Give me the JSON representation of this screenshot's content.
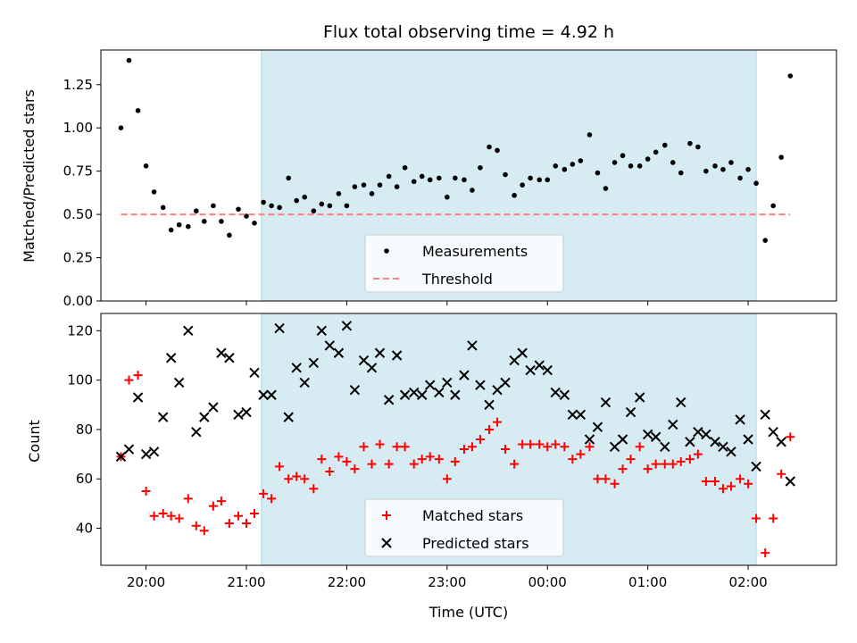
{
  "chart_data": [
    {
      "type": "scatter",
      "title": "Flux total observing time = 4.92 h",
      "xlabel": "",
      "ylabel": "Matched/Predicted stars",
      "ylim": [
        0,
        1.45
      ],
      "yticks": [
        "0.00",
        "0.25",
        "0.50",
        "0.75",
        "1.00",
        "1.25"
      ],
      "ytick_values": [
        0,
        0.25,
        0.5,
        0.75,
        1.0,
        1.25
      ],
      "xlim": [
        19.55,
        26.88
      ],
      "shaded_range": [
        21.15,
        26.08
      ],
      "shaded_color": "#add8e6",
      "legend_position": "bottom-center",
      "series": [
        {
          "name": "Measurements",
          "marker": "dot",
          "color": "#000000",
          "points": [
            [
              19.75,
              1.0
            ],
            [
              19.83,
              1.39
            ],
            [
              19.92,
              1.1
            ],
            [
              20.0,
              0.78
            ],
            [
              20.08,
              0.63
            ],
            [
              20.17,
              0.54
            ],
            [
              20.25,
              0.41
            ],
            [
              20.33,
              0.44
            ],
            [
              20.42,
              0.43
            ],
            [
              20.5,
              0.52
            ],
            [
              20.58,
              0.46
            ],
            [
              20.67,
              0.55
            ],
            [
              20.75,
              0.46
            ],
            [
              20.83,
              0.38
            ],
            [
              20.92,
              0.53
            ],
            [
              21.0,
              0.49
            ],
            [
              21.08,
              0.45
            ],
            [
              21.17,
              0.57
            ],
            [
              21.25,
              0.55
            ],
            [
              21.33,
              0.54
            ],
            [
              21.42,
              0.71
            ],
            [
              21.5,
              0.58
            ],
            [
              21.58,
              0.6
            ],
            [
              21.67,
              0.52
            ],
            [
              21.75,
              0.56
            ],
            [
              21.83,
              0.55
            ],
            [
              21.92,
              0.62
            ],
            [
              22.0,
              0.55
            ],
            [
              22.08,
              0.66
            ],
            [
              22.17,
              0.67
            ],
            [
              22.25,
              0.62
            ],
            [
              22.33,
              0.67
            ],
            [
              22.42,
              0.72
            ],
            [
              22.5,
              0.66
            ],
            [
              22.58,
              0.77
            ],
            [
              22.67,
              0.69
            ],
            [
              22.75,
              0.72
            ],
            [
              22.83,
              0.7
            ],
            [
              22.92,
              0.71
            ],
            [
              23.0,
              0.6
            ],
            [
              23.08,
              0.71
            ],
            [
              23.17,
              0.7
            ],
            [
              23.25,
              0.64
            ],
            [
              23.33,
              0.77
            ],
            [
              23.42,
              0.89
            ],
            [
              23.5,
              0.87
            ],
            [
              23.58,
              0.73
            ],
            [
              23.67,
              0.61
            ],
            [
              23.75,
              0.67
            ],
            [
              23.83,
              0.71
            ],
            [
              23.92,
              0.7
            ],
            [
              24.0,
              0.7
            ],
            [
              24.08,
              0.78
            ],
            [
              24.17,
              0.76
            ],
            [
              24.25,
              0.79
            ],
            [
              24.33,
              0.81
            ],
            [
              24.42,
              0.96
            ],
            [
              24.5,
              0.74
            ],
            [
              24.58,
              0.65
            ],
            [
              24.67,
              0.8
            ],
            [
              24.75,
              0.84
            ],
            [
              24.83,
              0.78
            ],
            [
              24.92,
              0.78
            ],
            [
              25.0,
              0.82
            ],
            [
              25.08,
              0.86
            ],
            [
              25.17,
              0.9
            ],
            [
              25.25,
              0.8
            ],
            [
              25.33,
              0.74
            ],
            [
              25.42,
              0.91
            ],
            [
              25.5,
              0.89
            ],
            [
              25.58,
              0.75
            ],
            [
              25.67,
              0.78
            ],
            [
              25.75,
              0.76
            ],
            [
              25.83,
              0.8
            ],
            [
              25.92,
              0.71
            ],
            [
              26.0,
              0.76
            ],
            [
              26.08,
              0.68
            ],
            [
              26.17,
              0.35
            ],
            [
              26.25,
              0.55
            ],
            [
              26.33,
              0.83
            ],
            [
              26.42,
              1.3
            ]
          ]
        },
        {
          "name": "Threshold",
          "marker": "dashed-line",
          "color": "#ff7f7f",
          "points": [
            [
              19.75,
              0.5
            ],
            [
              26.42,
              0.5
            ]
          ]
        }
      ]
    },
    {
      "type": "scatter",
      "title": "",
      "xlabel": "Time (UTC)",
      "ylabel": "Count",
      "ylim": [
        25,
        127
      ],
      "yticks": [
        "40",
        "60",
        "80",
        "100",
        "120"
      ],
      "ytick_values": [
        40,
        60,
        80,
        100,
        120
      ],
      "xlim": [
        19.55,
        26.88
      ],
      "xticks": [
        "20:00",
        "21:00",
        "22:00",
        "23:00",
        "00:00",
        "01:00",
        "02:00"
      ],
      "xtick_values": [
        20,
        21,
        22,
        23,
        24,
        25,
        26
      ],
      "shaded_range": [
        21.15,
        26.08
      ],
      "shaded_color": "#add8e6",
      "legend_position": "bottom-center",
      "series": [
        {
          "name": "Matched stars",
          "marker": "plus",
          "color": "#ff0000",
          "points": [
            [
              19.75,
              69
            ],
            [
              19.83,
              100
            ],
            [
              19.92,
              102
            ],
            [
              20.0,
              55
            ],
            [
              20.08,
              45
            ],
            [
              20.17,
              46
            ],
            [
              20.25,
              45
            ],
            [
              20.33,
              44
            ],
            [
              20.42,
              52
            ],
            [
              20.5,
              41
            ],
            [
              20.58,
              39
            ],
            [
              20.67,
              49
            ],
            [
              20.75,
              51
            ],
            [
              20.83,
              42
            ],
            [
              20.92,
              45
            ],
            [
              21.0,
              42
            ],
            [
              21.08,
              46
            ],
            [
              21.17,
              54
            ],
            [
              21.25,
              52
            ],
            [
              21.33,
              65
            ],
            [
              21.42,
              60
            ],
            [
              21.5,
              61
            ],
            [
              21.58,
              60
            ],
            [
              21.67,
              56
            ],
            [
              21.75,
              68
            ],
            [
              21.83,
              63
            ],
            [
              21.92,
              69
            ],
            [
              22.0,
              67
            ],
            [
              22.08,
              64
            ],
            [
              22.17,
              73
            ],
            [
              22.25,
              66
            ],
            [
              22.33,
              74
            ],
            [
              22.42,
              66
            ],
            [
              22.5,
              73
            ],
            [
              22.58,
              73
            ],
            [
              22.67,
              66
            ],
            [
              22.75,
              68
            ],
            [
              22.83,
              69
            ],
            [
              22.92,
              68
            ],
            [
              23.0,
              60
            ],
            [
              23.08,
              67
            ],
            [
              23.17,
              72
            ],
            [
              23.25,
              73
            ],
            [
              23.33,
              76
            ],
            [
              23.42,
              80
            ],
            [
              23.5,
              83
            ],
            [
              23.58,
              72
            ],
            [
              23.67,
              66
            ],
            [
              23.75,
              74
            ],
            [
              23.83,
              74
            ],
            [
              23.92,
              74
            ],
            [
              24.0,
              73
            ],
            [
              24.08,
              74
            ],
            [
              24.17,
              73
            ],
            [
              24.25,
              68
            ],
            [
              24.33,
              70
            ],
            [
              24.42,
              73
            ],
            [
              24.5,
              60
            ],
            [
              24.58,
              60
            ],
            [
              24.67,
              58
            ],
            [
              24.75,
              64
            ],
            [
              24.83,
              68
            ],
            [
              24.92,
              73
            ],
            [
              25.0,
              64
            ],
            [
              25.08,
              66
            ],
            [
              25.17,
              66
            ],
            [
              25.25,
              66
            ],
            [
              25.33,
              67
            ],
            [
              25.42,
              68
            ],
            [
              25.5,
              70
            ],
            [
              25.58,
              59
            ],
            [
              25.67,
              59
            ],
            [
              25.75,
              56
            ],
            [
              25.83,
              57
            ],
            [
              25.92,
              60
            ],
            [
              26.0,
              58
            ],
            [
              26.08,
              44
            ],
            [
              26.17,
              30
            ],
            [
              26.25,
              44
            ],
            [
              26.33,
              62
            ],
            [
              26.42,
              77
            ]
          ]
        },
        {
          "name": "Predicted stars",
          "marker": "x",
          "color": "#000000",
          "points": [
            [
              19.75,
              69
            ],
            [
              19.83,
              72
            ],
            [
              19.92,
              93
            ],
            [
              20.0,
              70
            ],
            [
              20.08,
              71
            ],
            [
              20.17,
              85
            ],
            [
              20.25,
              109
            ],
            [
              20.33,
              99
            ],
            [
              20.42,
              120
            ],
            [
              20.5,
              79
            ],
            [
              20.58,
              85
            ],
            [
              20.67,
              89
            ],
            [
              20.75,
              111
            ],
            [
              20.83,
              109
            ],
            [
              20.92,
              86
            ],
            [
              21.0,
              87
            ],
            [
              21.08,
              103
            ],
            [
              21.17,
              94
            ],
            [
              21.25,
              94
            ],
            [
              21.33,
              121
            ],
            [
              21.42,
              85
            ],
            [
              21.5,
              105
            ],
            [
              21.58,
              99
            ],
            [
              21.67,
              107
            ],
            [
              21.75,
              120
            ],
            [
              21.83,
              114
            ],
            [
              21.92,
              111
            ],
            [
              22.0,
              122
            ],
            [
              22.08,
              96
            ],
            [
              22.17,
              108
            ],
            [
              22.25,
              105
            ],
            [
              22.33,
              111
            ],
            [
              22.42,
              92
            ],
            [
              22.5,
              110
            ],
            [
              22.58,
              94
            ],
            [
              22.67,
              95
            ],
            [
              22.75,
              94
            ],
            [
              22.83,
              98
            ],
            [
              22.92,
              95
            ],
            [
              23.0,
              99
            ],
            [
              23.08,
              94
            ],
            [
              23.17,
              102
            ],
            [
              23.25,
              114
            ],
            [
              23.33,
              98
            ],
            [
              23.42,
              90
            ],
            [
              23.5,
              96
            ],
            [
              23.58,
              99
            ],
            [
              23.67,
              108
            ],
            [
              23.75,
              111
            ],
            [
              23.83,
              104
            ],
            [
              23.92,
              106
            ],
            [
              24.0,
              104
            ],
            [
              24.08,
              95
            ],
            [
              24.17,
              94
            ],
            [
              24.25,
              86
            ],
            [
              24.33,
              86
            ],
            [
              24.42,
              76
            ],
            [
              24.5,
              81
            ],
            [
              24.58,
              91
            ],
            [
              24.67,
              73
            ],
            [
              24.75,
              76
            ],
            [
              24.83,
              87
            ],
            [
              24.92,
              93
            ],
            [
              25.0,
              78
            ],
            [
              25.08,
              77
            ],
            [
              25.17,
              73
            ],
            [
              25.25,
              82
            ],
            [
              25.33,
              91
            ],
            [
              25.42,
              75
            ],
            [
              25.5,
              79
            ],
            [
              25.58,
              78
            ],
            [
              25.67,
              75
            ],
            [
              25.75,
              73
            ],
            [
              25.83,
              71
            ],
            [
              25.92,
              84
            ],
            [
              26.0,
              76
            ],
            [
              26.08,
              65
            ],
            [
              26.17,
              86
            ],
            [
              26.25,
              79
            ],
            [
              26.33,
              75
            ],
            [
              26.42,
              59
            ]
          ]
        }
      ]
    }
  ]
}
